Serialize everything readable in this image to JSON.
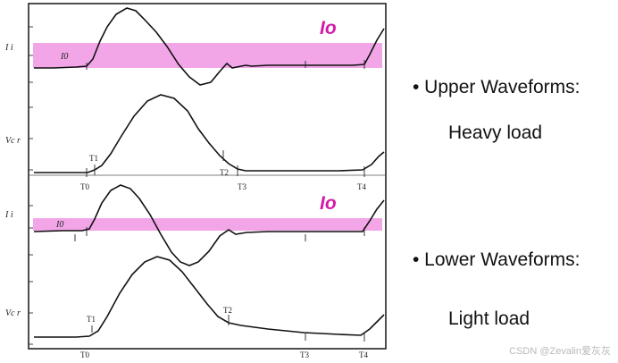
{
  "figure": {
    "upper": {
      "ii_label": "I i",
      "io_label": "Io",
      "marker_io": "I0",
      "vc_label": "Vc r",
      "t_labels": {
        "T0": "T0",
        "T1": "T1",
        "T2": "T2",
        "T3": "T3",
        "T4": "T4"
      }
    },
    "lower": {
      "ii_label": "I i",
      "io_label": "Io",
      "marker_io": "I0",
      "vc_label": "Vc r",
      "t_labels": {
        "T0": "T0",
        "T1": "T1",
        "T2": "T2",
        "T3": "T3",
        "T4": "T4"
      }
    },
    "colors": {
      "band": "#f2a6e8",
      "io_text": "#d21ca8",
      "trace": "#111111"
    }
  },
  "legend": {
    "upper_title": "• Upper Waveforms:",
    "upper_desc": "Heavy load",
    "lower_title": "• Lower Waveforms:",
    "lower_desc": "Light load"
  },
  "watermark": "CSDN @Zevalin爱灰灰"
}
